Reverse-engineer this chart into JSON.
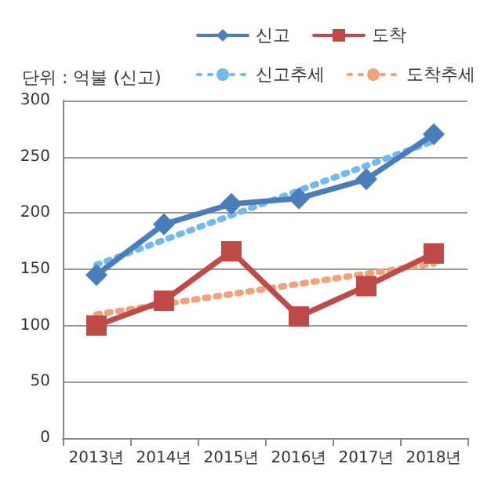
{
  "chart_data": {
    "type": "line",
    "annotations": [
      "단위 : 억불 (신고)"
    ],
    "categories": [
      "2013년",
      "2014년",
      "2015년",
      "2016년",
      "2017년",
      "2018년"
    ],
    "series": [
      {
        "name": "신고",
        "color": "#4a7ebb",
        "values": [
          145,
          190,
          208,
          213,
          230,
          270
        ],
        "marker": "diamond",
        "line_style": "solid"
      },
      {
        "name": "도착",
        "color": "#be4b48",
        "values": [
          100,
          122,
          166,
          108,
          135,
          164
        ],
        "marker": "square",
        "line_style": "solid"
      },
      {
        "name": "신고추세",
        "color": "#74b9ee",
        "values": [
          154,
          176,
          198,
          220,
          242,
          264
        ],
        "marker": "none",
        "line_style": "dotted"
      },
      {
        "name": "도착추세",
        "color": "#f0a27a",
        "values": [
          110,
          119,
          128,
          137,
          146,
          155
        ],
        "marker": "none",
        "line_style": "dotted"
      }
    ],
    "ylim": [
      0,
      300
    ],
    "yticks": [
      0,
      50,
      100,
      150,
      200,
      250,
      300
    ],
    "grid": "y",
    "legend": "top right"
  }
}
